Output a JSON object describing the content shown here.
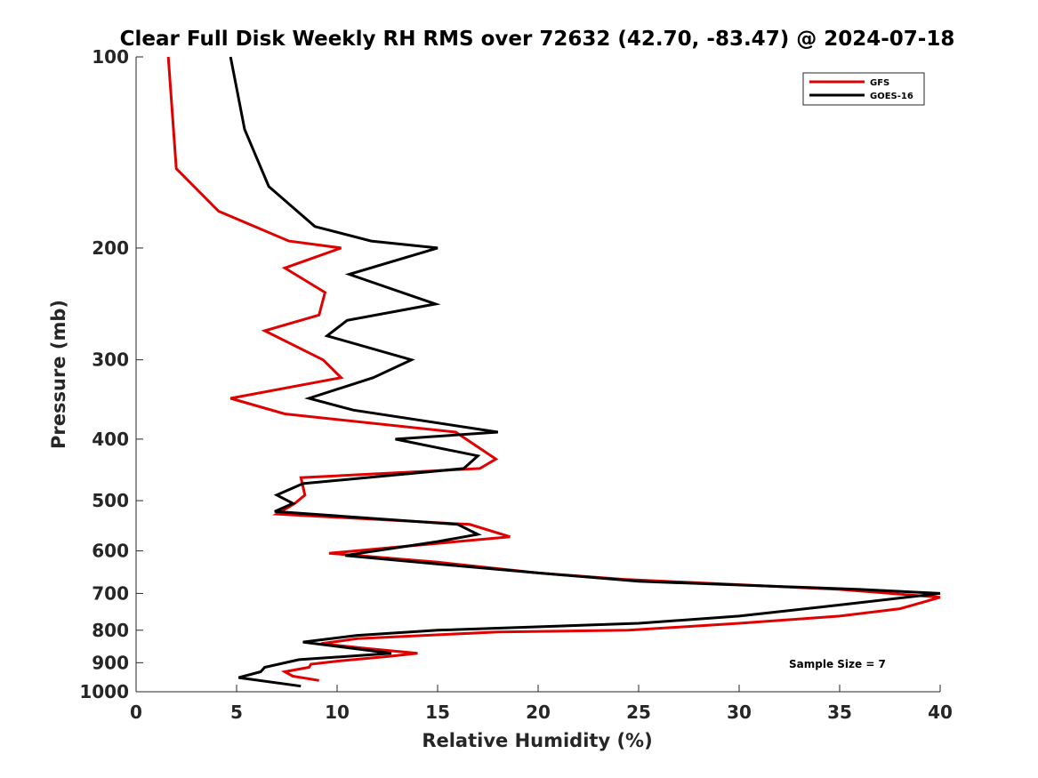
{
  "chart_data": {
    "type": "line",
    "title": "Clear Full Disk Weekly RH RMS over 72632 (42.70, -83.47) @ 2024-07-18",
    "xlabel": "Relative Humidity (%)",
    "ylabel": "Pressure (mb)",
    "xlim": [
      0,
      40
    ],
    "ylim": [
      100,
      1000
    ],
    "y_scale": "log",
    "y_reversed": true,
    "xticks": [
      0,
      5,
      10,
      15,
      20,
      25,
      30,
      35,
      40
    ],
    "yticks": [
      100,
      200,
      300,
      400,
      500,
      600,
      700,
      800,
      900,
      1000
    ],
    "grid": false,
    "legend_position": "top-right",
    "annotation": "Sample Size = 7",
    "series": [
      {
        "name": "GFS",
        "color": "#e00000",
        "points": [
          [
            1.6,
            100
          ],
          [
            2.0,
            150
          ],
          [
            4.1,
            175
          ],
          [
            7.6,
            195
          ],
          [
            10.2,
            200
          ],
          [
            7.4,
            215
          ],
          [
            9.4,
            235
          ],
          [
            9.1,
            255
          ],
          [
            6.4,
            270
          ],
          [
            9.3,
            300
          ],
          [
            10.2,
            320
          ],
          [
            4.7,
            345
          ],
          [
            7.4,
            365
          ],
          [
            15.9,
            390
          ],
          [
            17.9,
            430
          ],
          [
            17.1,
            445
          ],
          [
            8.2,
            460
          ],
          [
            8.4,
            490
          ],
          [
            7.9,
            505
          ],
          [
            7.0,
            525
          ],
          [
            16.6,
            545
          ],
          [
            18.6,
            570
          ],
          [
            9.6,
            605
          ],
          [
            11.0,
            610
          ],
          [
            15.0,
            625
          ],
          [
            20.0,
            650
          ],
          [
            24.2,
            665
          ],
          [
            35.0,
            690
          ],
          [
            40.0,
            710
          ],
          [
            38.0,
            740
          ],
          [
            35.0,
            760
          ],
          [
            30.0,
            780
          ],
          [
            24.5,
            800
          ],
          [
            18.0,
            805
          ],
          [
            11.0,
            825
          ],
          [
            9.2,
            840
          ],
          [
            11.5,
            855
          ],
          [
            14.0,
            870
          ],
          [
            12.5,
            880
          ],
          [
            10.0,
            895
          ],
          [
            8.7,
            905
          ],
          [
            8.6,
            915
          ],
          [
            7.4,
            930
          ],
          [
            7.8,
            945
          ],
          [
            9.1,
            960
          ]
        ]
      },
      {
        "name": "GOES-16",
        "color": "#000000",
        "points": [
          [
            4.7,
            100
          ],
          [
            5.4,
            130
          ],
          [
            6.6,
            160
          ],
          [
            8.9,
            185
          ],
          [
            11.7,
            195
          ],
          [
            15.0,
            200
          ],
          [
            10.6,
            220
          ],
          [
            14.9,
            245
          ],
          [
            10.5,
            260
          ],
          [
            9.5,
            275
          ],
          [
            13.7,
            300
          ],
          [
            11.8,
            320
          ],
          [
            8.6,
            345
          ],
          [
            10.8,
            360
          ],
          [
            18.0,
            390
          ],
          [
            12.9,
            400
          ],
          [
            17.0,
            425
          ],
          [
            16.3,
            445
          ],
          [
            8.3,
            470
          ],
          [
            7.0,
            490
          ],
          [
            7.8,
            505
          ],
          [
            6.9,
            520
          ],
          [
            16.0,
            545
          ],
          [
            17.0,
            565
          ],
          [
            15.0,
            580
          ],
          [
            10.4,
            610
          ],
          [
            14.0,
            625
          ],
          [
            20.0,
            650
          ],
          [
            25.0,
            670
          ],
          [
            36.0,
            690
          ],
          [
            40.0,
            700
          ],
          [
            35.0,
            730
          ],
          [
            30.0,
            760
          ],
          [
            25.0,
            780
          ],
          [
            15.0,
            800
          ],
          [
            11.0,
            815
          ],
          [
            8.3,
            835
          ],
          [
            12.7,
            870
          ],
          [
            8.1,
            890
          ],
          [
            6.4,
            915
          ],
          [
            6.2,
            930
          ],
          [
            5.1,
            950
          ],
          [
            8.2,
            980
          ]
        ]
      }
    ]
  }
}
